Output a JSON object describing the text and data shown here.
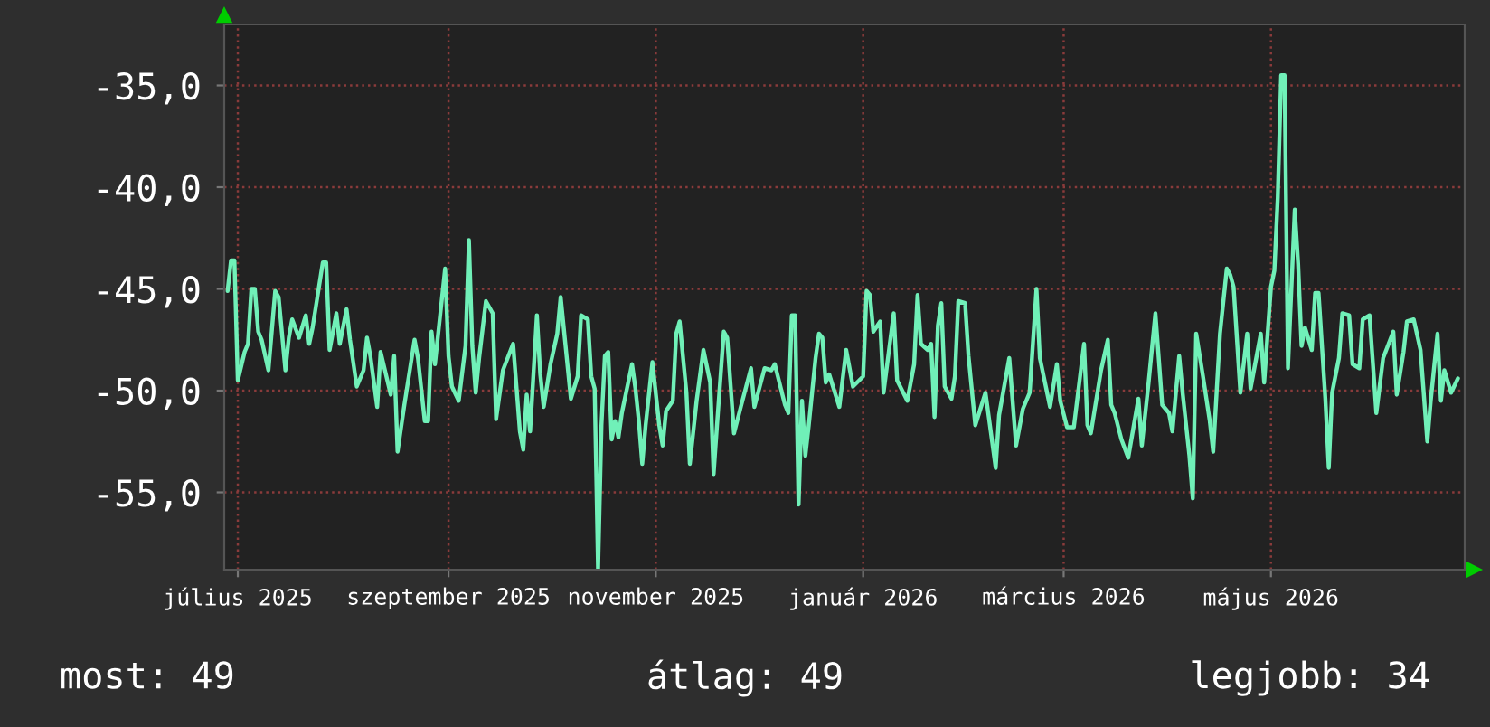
{
  "chart_data": {
    "type": "line",
    "x": [
      "2025-06-28",
      "2025-06-29",
      "2025-06-30",
      "2025-07-01",
      "2025-07-03",
      "2025-07-04",
      "2025-07-05",
      "2025-07-06",
      "2025-07-07",
      "2025-07-08",
      "2025-07-10",
      "2025-07-12",
      "2025-07-13",
      "2025-07-15",
      "2025-07-16",
      "2025-07-17",
      "2025-07-19",
      "2025-07-21",
      "2025-07-22",
      "2025-07-23",
      "2025-07-26",
      "2025-07-27",
      "2025-07-28",
      "2025-07-30",
      "2025-07-31",
      "2025-08-02",
      "2025-08-03",
      "2025-08-05",
      "2025-08-07",
      "2025-08-08",
      "2025-08-09",
      "2025-08-11",
      "2025-08-12",
      "2025-08-15",
      "2025-08-16",
      "2025-08-17",
      "2025-08-19",
      "2025-08-22",
      "2025-08-23",
      "2025-08-25",
      "2025-08-26",
      "2025-08-27",
      "2025-08-28",
      "2025-08-31",
      "2025-09-01",
      "2025-09-02",
      "2025-09-04",
      "2025-09-06",
      "2025-09-07",
      "2025-09-08",
      "2025-09-09",
      "2025-09-10",
      "2025-09-12",
      "2025-09-14",
      "2025-09-15",
      "2025-09-17",
      "2025-09-20",
      "2025-09-22",
      "2025-09-23",
      "2025-09-24",
      "2025-09-25",
      "2025-09-27",
      "2025-09-28",
      "2025-09-29",
      "2025-10-01",
      "2025-10-03",
      "2025-10-04",
      "2025-10-07",
      "2025-10-09",
      "2025-10-10",
      "2025-10-12",
      "2025-10-13",
      "2025-10-14",
      "2025-10-15",
      "2025-10-16",
      "2025-10-17",
      "2025-10-18",
      "2025-10-19",
      "2025-10-20",
      "2025-10-21",
      "2025-10-22",
      "2025-10-25",
      "2025-10-26",
      "2025-10-27",
      "2025-10-28",
      "2025-10-29",
      "2025-10-31",
      "2025-11-02",
      "2025-11-03",
      "2025-11-04",
      "2025-11-06",
      "2025-11-07",
      "2025-11-08",
      "2025-11-10",
      "2025-11-11",
      "2025-11-13",
      "2025-11-15",
      "2025-11-17",
      "2025-11-18",
      "2025-11-19",
      "2025-11-21",
      "2025-11-22",
      "2025-11-24",
      "2025-11-26",
      "2025-11-29",
      "2025-11-30",
      "2025-12-03",
      "2025-12-05",
      "2025-12-06",
      "2025-12-09",
      "2025-12-10",
      "2025-12-11",
      "2025-12-12",
      "2025-12-13",
      "2025-12-14",
      "2025-12-15",
      "2025-12-16",
      "2025-12-18",
      "2025-12-19",
      "2025-12-20",
      "2025-12-21",
      "2025-12-22",
      "2025-12-25",
      "2025-12-27",
      "2025-12-29",
      "2026-01-01",
      "2026-01-02",
      "2026-01-03",
      "2026-01-04",
      "2026-01-06",
      "2026-01-07",
      "2026-01-10",
      "2026-01-11",
      "2026-01-14",
      "2026-01-16",
      "2026-01-17",
      "2026-01-18",
      "2026-01-20",
      "2026-01-21",
      "2026-01-22",
      "2026-01-23",
      "2026-01-24",
      "2026-01-25",
      "2026-01-27",
      "2026-01-28",
      "2026-01-29",
      "2026-01-31",
      "2026-02-01",
      "2026-02-03",
      "2026-02-06",
      "2026-02-09",
      "2026-02-10",
      "2026-02-13",
      "2026-02-15",
      "2026-02-17",
      "2026-02-19",
      "2026-02-21",
      "2026-02-22",
      "2026-02-25",
      "2026-02-27",
      "2026-02-28",
      "2026-03-02",
      "2026-03-04",
      "2026-03-07",
      "2026-03-08",
      "2026-03-09",
      "2026-03-12",
      "2026-03-14",
      "2026-03-15",
      "2026-03-16",
      "2026-03-18",
      "2026-03-20",
      "2026-03-23",
      "2026-03-24",
      "2026-03-26",
      "2026-03-28",
      "2026-03-30",
      "2026-04-01",
      "2026-04-02",
      "2026-04-04",
      "2026-04-05",
      "2026-04-07",
      "2026-04-08",
      "2026-04-09",
      "2026-04-11",
      "2026-04-13",
      "2026-04-14",
      "2026-04-16",
      "2026-04-18",
      "2026-04-19",
      "2026-04-20",
      "2026-04-22",
      "2026-04-24",
      "2026-04-25",
      "2026-04-28",
      "2026-04-29",
      "2026-05-01",
      "2026-05-02",
      "2026-05-03",
      "2026-05-04",
      "2026-05-05",
      "2026-05-06",
      "2026-05-08",
      "2026-05-09",
      "2026-05-10",
      "2026-05-11",
      "2026-05-13",
      "2026-05-14",
      "2026-05-15",
      "2026-05-17",
      "2026-05-18",
      "2026-05-19",
      "2026-05-21",
      "2026-05-22",
      "2026-05-24",
      "2026-05-25",
      "2026-05-27",
      "2026-05-28",
      "2026-05-30",
      "2026-06-01",
      "2026-06-03",
      "2026-06-06",
      "2026-06-07",
      "2026-06-09",
      "2026-06-10",
      "2026-06-12",
      "2026-06-14",
      "2026-06-16",
      "2026-06-17",
      "2026-06-19",
      "2026-06-20",
      "2026-06-21",
      "2026-06-23",
      "2026-06-25"
    ],
    "series": [
      {
        "color": "#70f0b8",
        "values": [
          -45.1,
          -43.6,
          -43.6,
          -49.5,
          -48.1,
          -47.7,
          -45.0,
          -45.0,
          -47.1,
          -47.5,
          -49.0,
          -45.1,
          -45.4,
          -49.0,
          -47.4,
          -46.5,
          -47.4,
          -46.3,
          -47.7,
          -46.9,
          -43.7,
          -43.7,
          -48.0,
          -46.2,
          -47.7,
          -46.0,
          -47.5,
          -49.8,
          -49.0,
          -47.4,
          -48.3,
          -50.8,
          -48.1,
          -50.2,
          -48.3,
          -53.0,
          -50.7,
          -47.5,
          -48.4,
          -51.5,
          -51.5,
          -47.1,
          -48.7,
          -44.0,
          -48.3,
          -49.8,
          -50.5,
          -47.8,
          -42.6,
          -47.8,
          -50.1,
          -48.4,
          -45.6,
          -46.2,
          -51.4,
          -49.0,
          -47.7,
          -52.0,
          -52.9,
          -50.2,
          -52.0,
          -46.3,
          -49.2,
          -50.8,
          -48.7,
          -47.2,
          -45.4,
          -50.4,
          -49.3,
          -46.3,
          -46.5,
          -49.3,
          -49.9,
          -58.8,
          -51.7,
          -48.3,
          -48.1,
          -52.4,
          -51.5,
          -52.3,
          -51.1,
          -48.7,
          -49.9,
          -51.5,
          -53.6,
          -51.7,
          -48.6,
          -51.7,
          -52.7,
          -51.0,
          -50.5,
          -47.2,
          -46.6,
          -50.1,
          -53.6,
          -50.5,
          -48.0,
          -49.6,
          -54.1,
          -51.7,
          -47.1,
          -47.4,
          -52.1,
          -50.8,
          -48.9,
          -50.8,
          -48.9,
          -49.0,
          -48.7,
          -50.7,
          -51.1,
          -46.3,
          -46.3,
          -55.6,
          -50.5,
          -53.2,
          -51.7,
          -48.4,
          -47.2,
          -47.4,
          -49.6,
          -49.2,
          -50.8,
          -48.0,
          -49.8,
          -49.3,
          -45.1,
          -45.3,
          -47.1,
          -46.6,
          -50.1,
          -46.2,
          -49.5,
          -50.5,
          -48.7,
          -45.3,
          -47.7,
          -48.0,
          -47.7,
          -51.3,
          -46.8,
          -45.7,
          -49.8,
          -50.4,
          -49.3,
          -45.6,
          -45.7,
          -48.3,
          -51.7,
          -50.1,
          -53.8,
          -51.2,
          -48.4,
          -52.7,
          -50.9,
          -50.1,
          -45.0,
          -48.4,
          -50.8,
          -48.7,
          -50.5,
          -51.8,
          -51.8,
          -47.7,
          -51.7,
          -52.1,
          -49.0,
          -47.5,
          -50.7,
          -51.1,
          -52.4,
          -53.3,
          -50.4,
          -52.7,
          -49.6,
          -46.2,
          -50.7,
          -51.1,
          -52.0,
          -48.3,
          -50.1,
          -53.2,
          -55.3,
          -47.2,
          -49.3,
          -51.5,
          -53.0,
          -47.2,
          -44.0,
          -44.3,
          -44.9,
          -50.1,
          -47.2,
          -49.9,
          -47.2,
          -49.6,
          -44.9,
          -44.1,
          -40.5,
          -34.5,
          -34.5,
          -48.9,
          -41.1,
          -43.8,
          -47.8,
          -46.9,
          -48.0,
          -45.2,
          -45.2,
          -50.4,
          -53.8,
          -50.1,
          -48.4,
          -46.2,
          -46.3,
          -48.7,
          -48.9,
          -46.5,
          -46.3,
          -51.1,
          -48.4,
          -47.1,
          -50.2,
          -48.1,
          -46.6,
          -46.5,
          -48.0,
          -52.5,
          -50.5,
          -47.2,
          -50.5,
          -49.0,
          -50.1,
          -49.4
        ]
      }
    ],
    "xlim": [
      "2025-06-27",
      "2026-06-27"
    ],
    "xticks": [
      {
        "value": "2025-07-01",
        "label": "július 2025"
      },
      {
        "value": "2025-09-01",
        "label": "szeptember 2025"
      },
      {
        "value": "2025-11-01",
        "label": "november 2025"
      },
      {
        "value": "2026-01-01",
        "label": "január 2026"
      },
      {
        "value": "2026-03-01",
        "label": "március 2026"
      },
      {
        "value": "2026-05-01",
        "label": "május 2026"
      }
    ],
    "ylim": [
      -58.8,
      -32.0
    ],
    "yticks": [
      {
        "value": -55,
        "label": "-55,0"
      },
      {
        "value": -50,
        "label": "-50,0"
      },
      {
        "value": -45,
        "label": "-45,0"
      },
      {
        "value": -40,
        "label": "-40,0"
      },
      {
        "value": -35,
        "label": "-35,0"
      }
    ],
    "grid": true,
    "annotations": [
      "most: 49",
      "átlag: 49",
      "legjobb: 34"
    ]
  }
}
